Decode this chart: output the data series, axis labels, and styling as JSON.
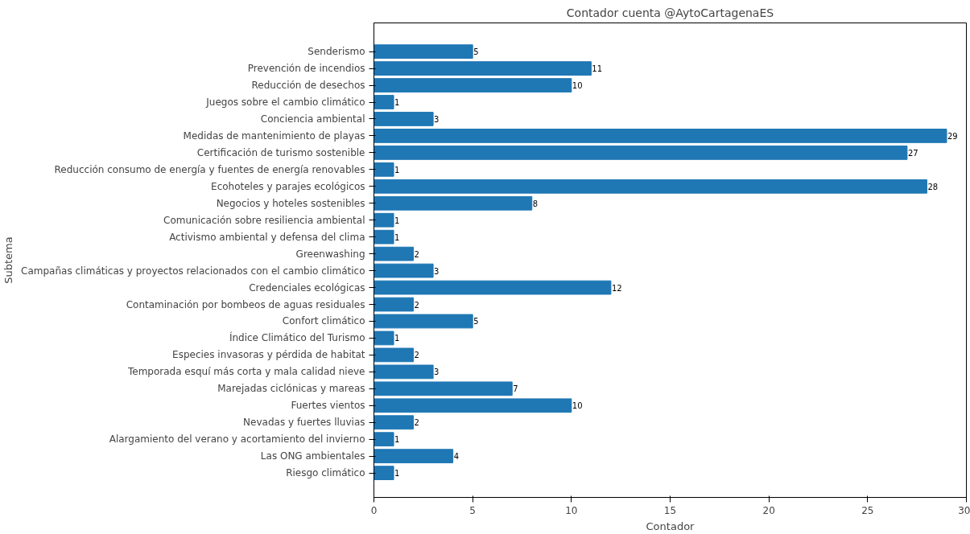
{
  "chart_data": {
    "type": "bar",
    "orientation": "horizontal",
    "title": "Contador cuenta @AytoCartagenaES",
    "xlabel": "Contador",
    "ylabel": "Subtema",
    "categories": [
      "Senderismo",
      "Prevención de incendios",
      "Reducción de desechos",
      "Juegos sobre el cambio climático",
      "Conciencia ambiental",
      "Medidas de mantenimiento de playas",
      "Certificación de turismo sostenible",
      "Reducción consumo de energía y fuentes de energía renovables",
      "Ecohoteles y parajes ecológicos",
      "Negocios y hoteles sostenibles",
      "Comunicación sobre resiliencia ambiental",
      "Activismo ambiental y defensa del clima",
      "Greenwashing",
      "Campañas climáticas y proyectos relacionados con el cambio climático",
      "Credenciales ecológicas",
      "Contaminación por bombeos de aguas residuales",
      "Confort climático",
      "Índice Climático del Turismo",
      "Especies invasoras y pérdida de habitat",
      "Temporada esquí más corta y mala calidad nieve",
      "Marejadas ciclónicas y mareas",
      "Fuertes vientos",
      "Nevadas y fuertes lluvias",
      "Alargamiento del verano y acortamiento del invierno",
      "Las ONG ambientales",
      "Riesgo climático"
    ],
    "values": [
      5,
      11,
      10,
      1,
      3,
      29,
      27,
      1,
      28,
      8,
      1,
      1,
      2,
      3,
      12,
      2,
      5,
      1,
      2,
      3,
      7,
      10,
      2,
      1,
      4,
      1
    ],
    "color": "#1f77b4",
    "xlim": [
      0,
      30
    ],
    "xticks": [
      0,
      5,
      10,
      15,
      20,
      25,
      30
    ],
    "data_labels": true,
    "grid": false
  }
}
